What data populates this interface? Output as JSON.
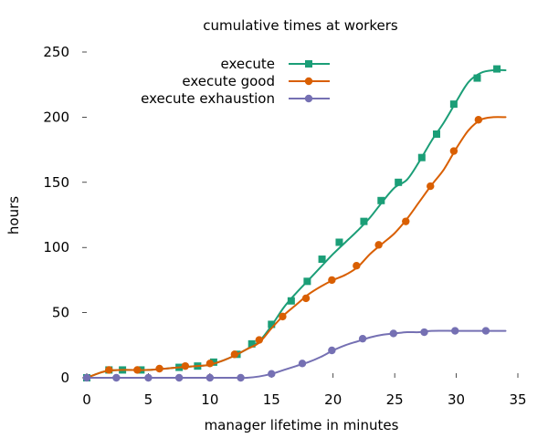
{
  "chart_data": {
    "type": "line",
    "title": "cumulative times at workers",
    "xlabel": "manager lifetime in minutes",
    "ylabel": "hours",
    "xlim": [
      0,
      35
    ],
    "ylim": [
      0,
      250
    ],
    "xticks": [
      0,
      5,
      10,
      15,
      20,
      25,
      30,
      35
    ],
    "yticks": [
      0,
      50,
      100,
      150,
      200,
      250
    ],
    "xtick_labels": [
      "0",
      "5",
      "10",
      "15",
      "20",
      "25",
      "30",
      "35"
    ],
    "ytick_labels": [
      "0",
      "50",
      "100",
      "150",
      "200",
      "250"
    ],
    "grid": false,
    "legend_position": "top-right",
    "series": [
      {
        "name": "execute",
        "color": "#1b9e77",
        "marker": "square",
        "x": [
          0,
          1.5,
          3,
          5,
          7.5,
          9,
          10,
          11,
          12,
          13,
          14,
          15,
          16,
          17,
          18,
          19,
          20,
          21,
          22,
          23,
          24,
          25,
          26,
          27,
          28,
          29,
          30,
          31,
          32,
          33,
          34
        ],
        "y": [
          0,
          5,
          6,
          6,
          8,
          9,
          10,
          13,
          17,
          22,
          28,
          40,
          54,
          65,
          75,
          85,
          95,
          104,
          113,
          123,
          135,
          146,
          152,
          166,
          182,
          196,
          212,
          227,
          234,
          236,
          236
        ],
        "marker_x": [
          0,
          1.8,
          2.9,
          4.4,
          7.5,
          9,
          10.3,
          12.2,
          13.4,
          15,
          16.6,
          17.9,
          19.1,
          20.5,
          22.5,
          23.9,
          25.3,
          27.2,
          28.4,
          29.8,
          31.7,
          33.3
        ],
        "marker_y": [
          0,
          6,
          6,
          6,
          8,
          9,
          12,
          18,
          26,
          41,
          59,
          74,
          91,
          104,
          120,
          136,
          150,
          169,
          187,
          210,
          230,
          237
        ]
      },
      {
        "name": "execute good",
        "color": "#d95f02",
        "marker": "circle",
        "x": [
          0,
          1.5,
          3,
          5,
          7.5,
          9,
          10,
          11,
          12,
          13,
          14,
          15,
          16,
          17,
          18,
          19,
          20,
          21,
          22,
          23,
          24,
          25,
          26,
          27,
          28,
          29,
          30,
          31,
          32,
          33,
          34
        ],
        "y": [
          0,
          5,
          6,
          6,
          8,
          9,
          10,
          13,
          17,
          22,
          27,
          38,
          48,
          56,
          64,
          70,
          75,
          79,
          85,
          95,
          103,
          111,
          122,
          135,
          148,
          160,
          176,
          190,
          198,
          200,
          200
        ],
        "marker_x": [
          1.8,
          4.1,
          5.9,
          8,
          10,
          12,
          14,
          15.9,
          17.8,
          19.9,
          21.9,
          23.7,
          25.9,
          27.9,
          29.8,
          31.8
        ],
        "marker_y": [
          6,
          6,
          7,
          9,
          11,
          18,
          29,
          47,
          61,
          75,
          86,
          102,
          120,
          147,
          174,
          198
        ]
      },
      {
        "name": "execute exhaustion",
        "color": "#7570b3",
        "marker": "circle",
        "x": [
          0,
          5,
          10,
          12,
          13,
          14,
          15,
          16,
          17,
          18,
          19,
          20,
          21,
          22,
          23,
          24,
          25,
          26,
          27,
          28,
          30,
          32,
          34
        ],
        "y": [
          0,
          0,
          0,
          0,
          0,
          1,
          3,
          6,
          9,
          12,
          16,
          21,
          25,
          28,
          31,
          33,
          34,
          35,
          35,
          36,
          36,
          36,
          36
        ],
        "marker_x": [
          0,
          2.4,
          5,
          7.5,
          10,
          12.5,
          15,
          17.5,
          19.9,
          22.4,
          24.9,
          27.4,
          29.9,
          32.4
        ],
        "marker_y": [
          0,
          0,
          0,
          0,
          0,
          0,
          3,
          11,
          21,
          30,
          34,
          35,
          36,
          36
        ]
      }
    ]
  }
}
